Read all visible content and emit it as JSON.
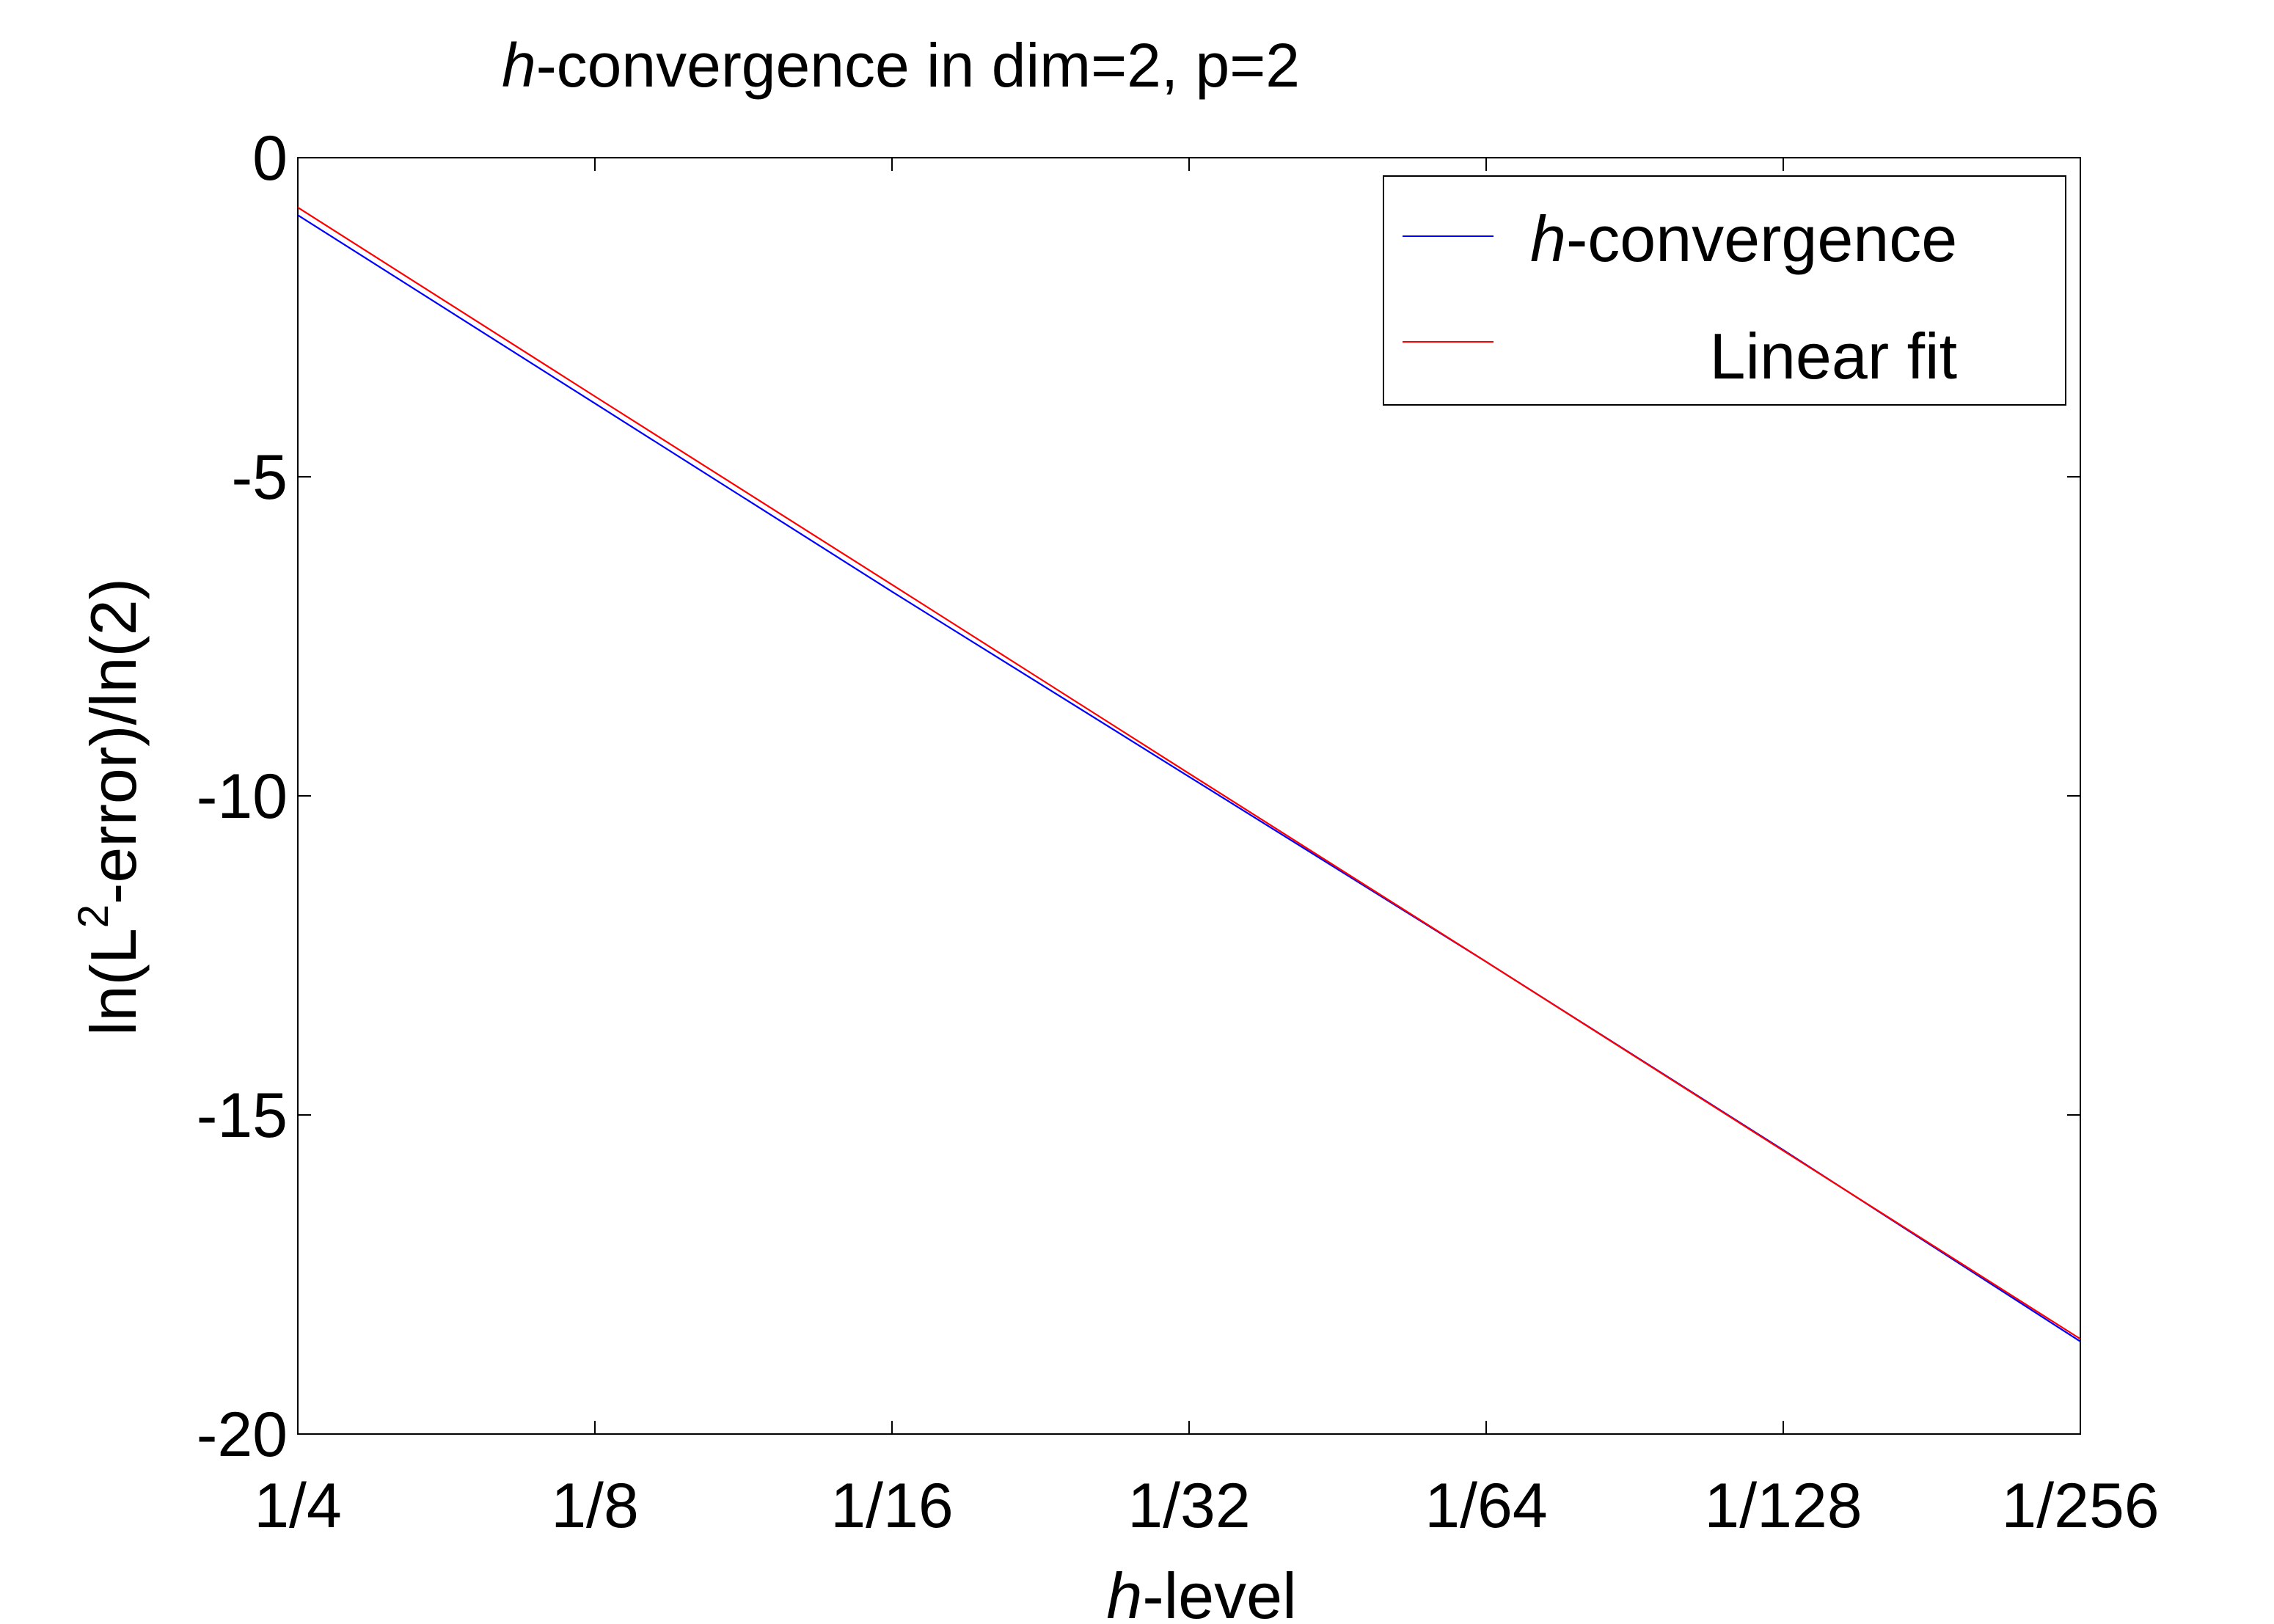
{
  "chart_data": {
    "type": "line",
    "title": {
      "italic_part": "h",
      "rest": "-convergence in dim=2, p=2"
    },
    "xlabel": {
      "italic_part": "h",
      "rest": "-level"
    },
    "ylabel": {
      "before_sup": "ln(L",
      "sup": "2",
      "after_sup": "-error)/ln(2)"
    },
    "categories": [
      "1/4",
      "1/8",
      "1/16",
      "1/32",
      "1/64",
      "1/128",
      "1/256"
    ],
    "x": [
      0,
      1,
      2,
      3,
      4,
      5,
      6
    ],
    "xlim": [
      0,
      6
    ],
    "ylim": [
      -20,
      0
    ],
    "yticks": [
      0,
      -5,
      -10,
      -15,
      -20
    ],
    "ytick_labels": [
      "0",
      "-5",
      "-10",
      "-15",
      "-20"
    ],
    "grid": false,
    "legend": {
      "placement": "top-right"
    },
    "series": [
      {
        "name_italic": "h",
        "name_rest": "-convergence",
        "color": "#0000ff",
        "values": [
          -0.9,
          -3.85,
          -6.8,
          -9.7,
          -12.6,
          -15.55,
          -18.55
        ]
      },
      {
        "name_italic": "",
        "name_rest": " Linear fit",
        "color": "#ff0000",
        "values": [
          -0.78,
          -3.74,
          -6.69,
          -9.65,
          -12.6,
          -15.56,
          -18.51
        ]
      }
    ]
  }
}
